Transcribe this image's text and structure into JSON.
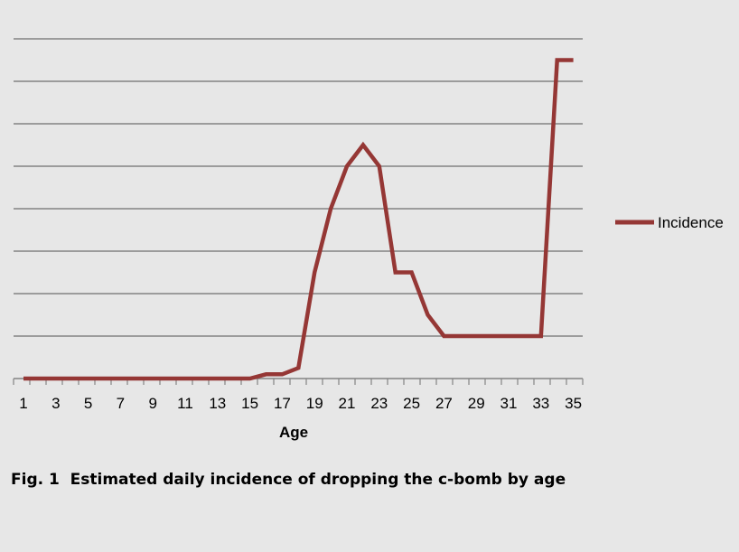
{
  "chart_data": {
    "type": "line",
    "xlabel": "Age",
    "ylabel": "",
    "x": [
      1,
      2,
      3,
      4,
      5,
      6,
      7,
      8,
      9,
      10,
      11,
      12,
      13,
      14,
      15,
      16,
      17,
      18,
      19,
      20,
      21,
      22,
      23,
      24,
      25,
      26,
      27,
      28,
      29,
      30,
      31,
      32,
      33,
      34,
      35
    ],
    "x_tick_labels": [
      "1",
      "3",
      "5",
      "7",
      "9",
      "11",
      "13",
      "15",
      "17",
      "19",
      "21",
      "23",
      "25",
      "27",
      "29",
      "31",
      "33",
      "35"
    ],
    "ylim": [
      0,
      8
    ],
    "y_gridlines": 8,
    "series": [
      {
        "name": "Incidence",
        "color": "#953735",
        "values": [
          0,
          0,
          0,
          0,
          0,
          0,
          0,
          0,
          0,
          0,
          0,
          0,
          0,
          0,
          0,
          0.1,
          0.1,
          0.25,
          2.5,
          4,
          5,
          5.5,
          5,
          2.5,
          2.5,
          1.5,
          1,
          1,
          1,
          1,
          1,
          1,
          1,
          7.5,
          7.5
        ]
      }
    ],
    "legend_position": "right",
    "grid": true
  },
  "caption": "Fig. 1  Estimated daily incidence of dropping the c-bomb by age"
}
